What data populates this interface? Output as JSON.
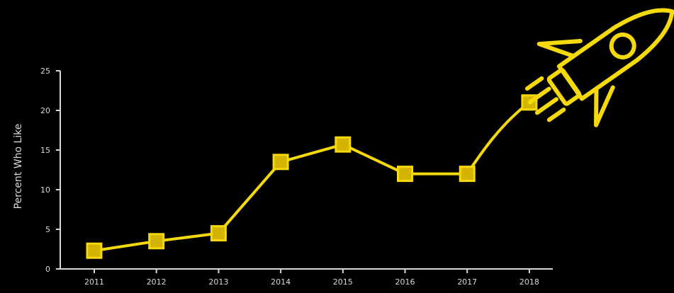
{
  "colors": {
    "background": "#000000",
    "line": "#f5d90a",
    "marker_fill": "#d4b400",
    "axis": "#d9d9d9",
    "rocket": "#f5d90a"
  },
  "decorations": {
    "rocket_icon": "rocket-icon"
  },
  "chart_data": {
    "type": "line",
    "title": "",
    "xlabel": "",
    "ylabel": "Percent Who Like",
    "x": [
      "2011",
      "2012",
      "2013",
      "2014",
      "2015",
      "2016",
      "2017",
      "2018"
    ],
    "series": [
      {
        "values": [
          2.3,
          3.5,
          4.5,
          13.5,
          15.7,
          12.0,
          12.0,
          21.0
        ]
      }
    ],
    "y_ticks": [
      "0",
      "5",
      "10",
      "15",
      "20",
      "25"
    ],
    "ylim": [
      0,
      25
    ],
    "grid": false,
    "marker": "square"
  }
}
